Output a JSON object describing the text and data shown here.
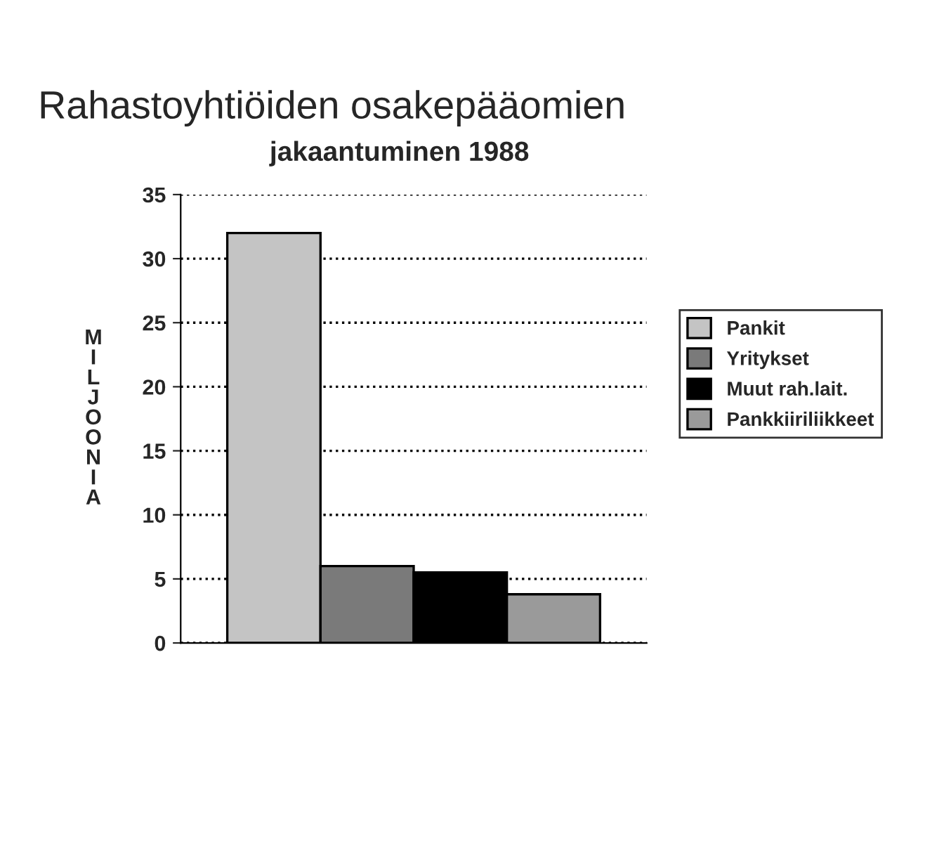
{
  "chart_data": {
    "type": "bar",
    "title": "Rahastoyhtiöiden osakepääomien",
    "subtitle": "jakaantuminen 1988",
    "ylabel": "MILJOONIA",
    "categories": [
      null
    ],
    "series": [
      {
        "name": "Pankit",
        "color": "#c4c4c4",
        "values": [
          32
        ]
      },
      {
        "name": "Yritykset",
        "color": "#7a7a7a",
        "values": [
          6
        ]
      },
      {
        "name": "Muut rah.lait.",
        "color": "#000000",
        "values": [
          5.5
        ]
      },
      {
        "name": "Pankkiiriliikkeet",
        "color": "#9a9a9a",
        "values": [
          3.8
        ]
      }
    ],
    "ylim": [
      0,
      35
    ],
    "yticks": [
      0,
      5,
      10,
      15,
      20,
      25,
      30,
      35
    ],
    "grid": "y",
    "legend": "right"
  }
}
